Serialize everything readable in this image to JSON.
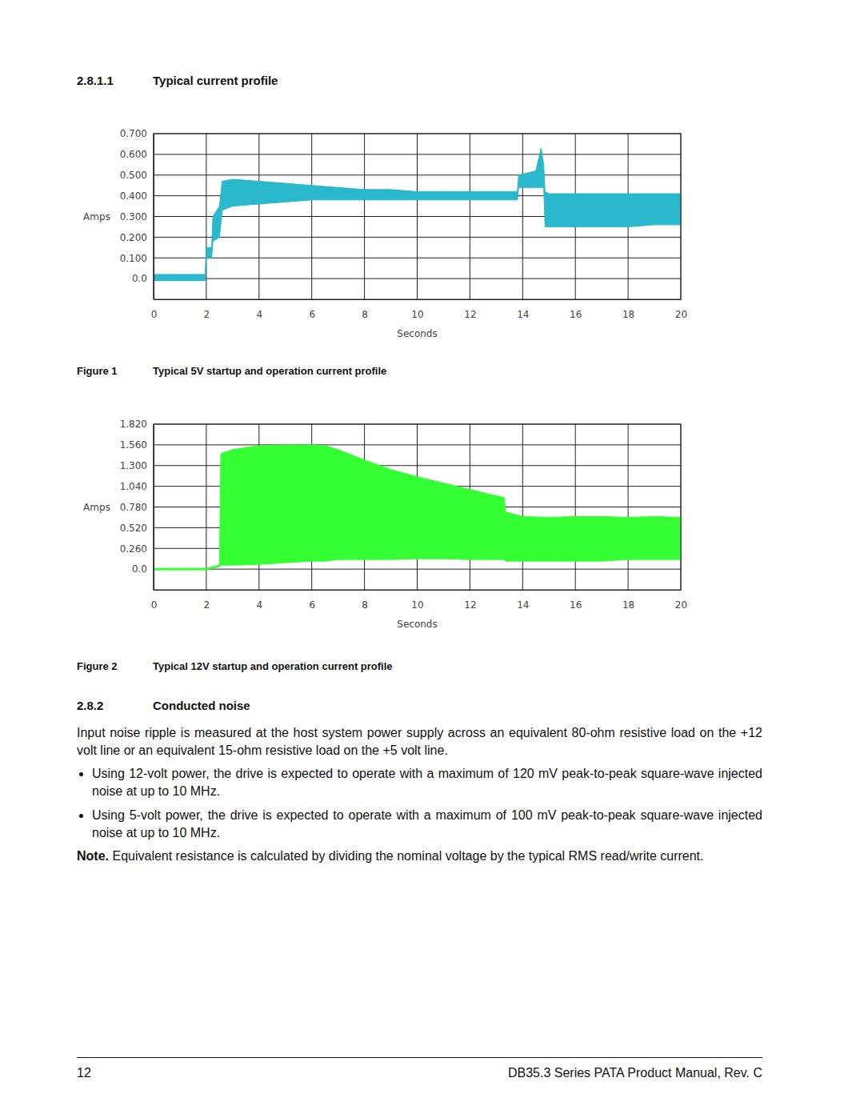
{
  "header": {
    "number": "2.8.1.1",
    "title": "Typical current profile"
  },
  "chart_data": [
    {
      "type": "area",
      "figure": "Figure 1",
      "title": "Typical 5V startup and operation current profile",
      "x_label": "Seconds",
      "y_label": "Amps",
      "x": [
        0,
        1,
        1.95,
        2.0,
        2.2,
        2.25,
        2.5,
        2.6,
        3,
        4,
        5,
        6,
        7,
        8,
        9,
        10,
        11,
        12,
        13,
        13.8,
        13.85,
        14.5,
        14.7,
        14.8,
        14.85,
        15,
        16,
        17,
        18,
        19,
        20
      ],
      "series": [
        {
          "color": "#29b8cc",
          "values": [
            0.02,
            0.02,
            0.02,
            0.15,
            0.15,
            0.3,
            0.35,
            0.47,
            0.48,
            0.47,
            0.46,
            0.45,
            0.44,
            0.43,
            0.43,
            0.42,
            0.42,
            0.42,
            0.42,
            0.42,
            0.5,
            0.52,
            0.63,
            0.55,
            0.42,
            0.41,
            0.41,
            0.41,
            0.41,
            0.41,
            0.41
          ],
          "low": [
            -0.01,
            -0.01,
            -0.01,
            0.1,
            0.1,
            0.18,
            0.2,
            0.33,
            0.35,
            0.36,
            0.37,
            0.38,
            0.38,
            0.38,
            0.38,
            0.38,
            0.38,
            0.38,
            0.38,
            0.38,
            0.44,
            0.44,
            0.44,
            0.44,
            0.25,
            0.25,
            0.25,
            0.25,
            0.25,
            0.26,
            0.26
          ]
        }
      ],
      "xlim": [
        0,
        20
      ],
      "ylim": [
        -0.1,
        0.7
      ],
      "xticks": [
        0,
        2,
        4,
        6,
        8,
        10,
        12,
        14,
        16,
        18,
        20
      ],
      "yticks": [
        {
          "value": 0,
          "label": "0.0"
        },
        {
          "value": 0.1,
          "label": "0.100"
        },
        {
          "value": 0.2,
          "label": "0.200"
        },
        {
          "value": 0.3,
          "label": "0.300"
        },
        {
          "value": 0.4,
          "label": "0.400"
        },
        {
          "value": 0.5,
          "label": "0.500"
        },
        {
          "value": 0.6,
          "label": "0.600"
        },
        {
          "value": 0.7,
          "label": "0.700"
        }
      ],
      "grid": true
    },
    {
      "type": "area",
      "figure": "Figure 2",
      "title": "Typical 12V startup and operation current profile",
      "x_label": "Seconds",
      "y_label": "Amps",
      "x": [
        0,
        1,
        2,
        2.5,
        2.55,
        3,
        4,
        5,
        6,
        6.5,
        7,
        8,
        9,
        10,
        11,
        12,
        13,
        13.3,
        13.35,
        14,
        15,
        16,
        17,
        18,
        19,
        20
      ],
      "series": [
        {
          "color": "#33ff33",
          "values": [
            0.01,
            0.01,
            0.01,
            0.05,
            1.45,
            1.5,
            1.55,
            1.56,
            1.56,
            1.55,
            1.5,
            1.37,
            1.25,
            1.16,
            1.08,
            1.0,
            0.92,
            0.9,
            0.72,
            0.66,
            0.65,
            0.66,
            0.66,
            0.65,
            0.66,
            0.65
          ],
          "low": [
            -0.01,
            -0.01,
            -0.01,
            0.03,
            0.05,
            0.05,
            0.06,
            0.08,
            0.1,
            0.1,
            0.12,
            0.12,
            0.12,
            0.13,
            0.13,
            0.12,
            0.12,
            0.12,
            0.1,
            0.1,
            0.1,
            0.1,
            0.1,
            0.12,
            0.12,
            0.12
          ]
        }
      ],
      "xlim": [
        0,
        20
      ],
      "ylim": [
        -0.26,
        1.82
      ],
      "xticks": [
        0,
        2,
        4,
        6,
        8,
        10,
        12,
        14,
        16,
        18,
        20
      ],
      "yticks": [
        {
          "value": 0,
          "label": "0.0"
        },
        {
          "value": 0.26,
          "label": "0.260"
        },
        {
          "value": 0.52,
          "label": "0.520"
        },
        {
          "value": 0.78,
          "label": "0.780"
        },
        {
          "value": 1.04,
          "label": "1.040"
        },
        {
          "value": 1.3,
          "label": "1.300"
        },
        {
          "value": 1.56,
          "label": "1.560"
        },
        {
          "value": 1.82,
          "label": "1.820"
        }
      ],
      "grid": true
    }
  ],
  "section": {
    "number": "2.8.2",
    "title": "Conducted noise"
  },
  "paragraph": "Input noise ripple is measured at the host system power supply across an equivalent 80-ohm resistive load on the +12 volt line or an equivalent 15-ohm resistive load on the +5 volt line.",
  "bullets": [
    "Using 12-volt power, the drive is expected to operate with a maximum of 120 mV peak-to-peak square-wave injected noise at up to 10 MHz.",
    "Using 5-volt power, the drive is expected to operate with a maximum of 100 mV peak-to-peak square-wave injected noise at up to 10 MHz."
  ],
  "note": {
    "label": "Note.",
    "text": "Equivalent resistance is calculated by dividing the nominal voltage by the typical RMS read/write current."
  },
  "footer": {
    "page": "12",
    "title": "DB35.3 Series PATA Product Manual, Rev. C"
  }
}
